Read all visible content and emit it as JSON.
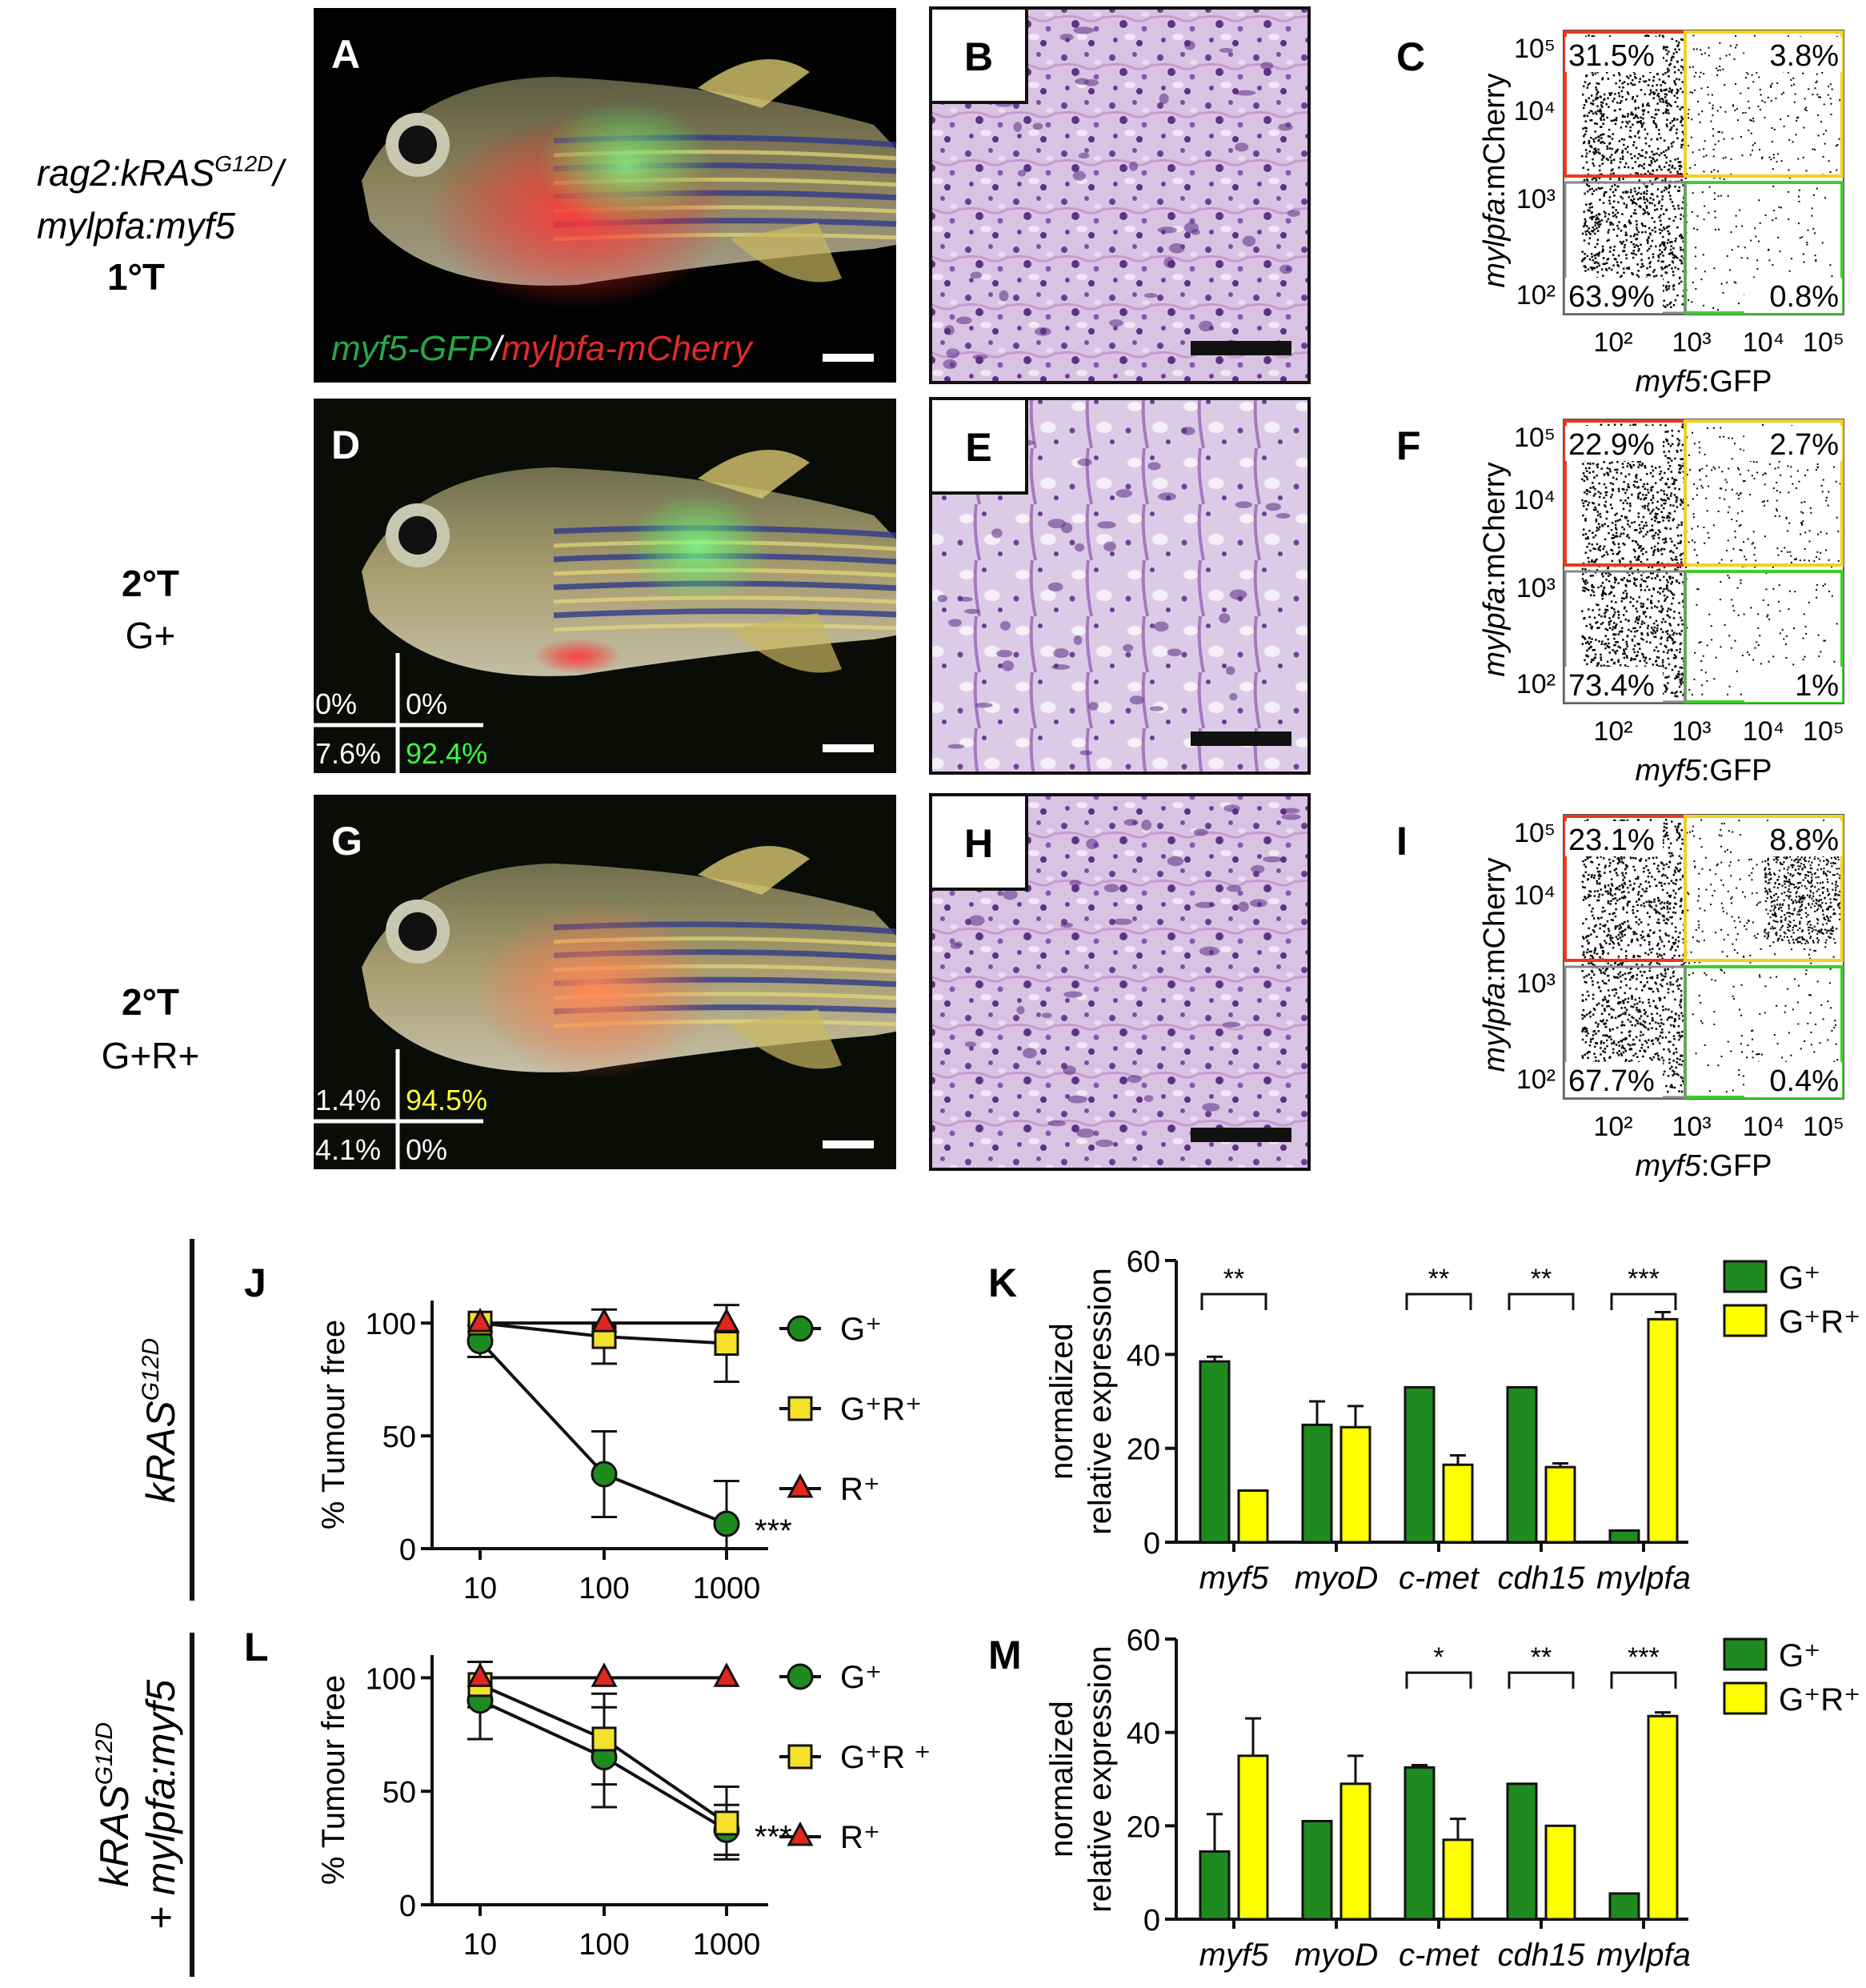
{
  "row_labels": {
    "r1": {
      "line1": "rag2:kRAS",
      "sup1": "G12D",
      "slash": "/",
      "line2": "mylpfa:myf5",
      "line3": "1°T"
    },
    "r2": {
      "line1": "2°T",
      "line2": "G+"
    },
    "r3": {
      "line1": "2°T",
      "line2": "G+R+"
    }
  },
  "side_labels": {
    "top": {
      "text": "kRAS",
      "sup": "G12D"
    },
    "bottom": {
      "line1": "kRAS",
      "sup": "G12D",
      "line2": "+ mylpfa:myf5"
    }
  },
  "fish_panels": [
    {
      "letter": "A",
      "legend_green": "myf5-GFP",
      "legend_sep": "/",
      "legend_red": "mylpfa-mCherry",
      "mini_quadrants": null
    },
    {
      "letter": "D",
      "legend_green": "",
      "legend_sep": "",
      "legend_red": "",
      "mini_quadrants": {
        "ul": "0%",
        "ur": "0%",
        "ll": "7.6%",
        "lr": "92.4%",
        "lr_color": "#3cff3c",
        "ur_color": "#ffffff"
      }
    },
    {
      "letter": "G",
      "legend_green": "",
      "legend_sep": "",
      "legend_red": "",
      "mini_quadrants": {
        "ul": "1.4%",
        "ur": "94.5%",
        "ll": "4.1%",
        "lr": "0%",
        "lr_color": "#ffffff",
        "ur_color": "#ffff33"
      }
    }
  ],
  "histology_panels": [
    {
      "letter": "B"
    },
    {
      "letter": "E"
    },
    {
      "letter": "H"
    }
  ],
  "flow_panels": [
    {
      "letter": "C",
      "ylabel_italic": "mylpfa",
      "ylabel_rest": ":mCherry",
      "xlabel_italic": "myf5",
      "xlabel_rest": ":GFP",
      "quadrants": {
        "ul": "31.5%",
        "ur": "3.8%",
        "ll": "63.9%",
        "lr": "0.8%"
      },
      "yticks": [
        "10²",
        "10³",
        "10⁴",
        "10⁵"
      ],
      "xticks": [
        "10²",
        "10³",
        "10⁴",
        "10⁵"
      ]
    },
    {
      "letter": "F",
      "ylabel_italic": "mylpfa",
      "ylabel_rest": ":mCherry",
      "xlabel_italic": "myf5",
      "xlabel_rest": ":GFP",
      "quadrants": {
        "ul": "22.9%",
        "ur": "2.7%",
        "ll": "73.4%",
        "lr": "1%"
      },
      "yticks": [
        "10²",
        "10³",
        "10⁴",
        "10⁵"
      ],
      "xticks": [
        "10²",
        "10³",
        "10⁴",
        "10⁵"
      ]
    },
    {
      "letter": "I",
      "ylabel_italic": "mylpfa",
      "ylabel_rest": ":mCherry",
      "xlabel_italic": "myf5",
      "xlabel_rest": ":GFP",
      "quadrants": {
        "ul": "23.1%",
        "ur": "8.8%",
        "ll": "67.7%",
        "lr": "0.4%"
      },
      "yticks": [
        "10²",
        "10³",
        "10⁴",
        "10⁵"
      ],
      "xticks": [
        "10²",
        "10³",
        "10⁴",
        "10⁵"
      ]
    }
  ],
  "colors": {
    "green": "#1f8a1f",
    "yellow": "#ffff00",
    "red": "#e0271e",
    "gate_red": "#e8391c",
    "gate_yellow": "#f2d21b",
    "gate_green": "#3ccf2a"
  },
  "chart_data": [
    {
      "panel": "J",
      "type": "line",
      "ylabel": "% Tumour free",
      "x": [
        10,
        100,
        1000
      ],
      "xticks": [
        "10",
        "100",
        "1000"
      ],
      "yticks": [
        "0",
        "50",
        "100"
      ],
      "ylim": [
        0,
        110
      ],
      "xscale": "log",
      "annotation": "***",
      "series": [
        {
          "name": "G⁺",
          "marker": "circle",
          "color": "#1f8a1f",
          "values": [
            92,
            33,
            11
          ],
          "errors": [
            7,
            19,
            19
          ]
        },
        {
          "name": "G⁺R⁺",
          "marker": "square",
          "color": "#f5e12a",
          "values": [
            100,
            94,
            91
          ],
          "errors": [
            0,
            12,
            17
          ]
        },
        {
          "name": "R⁺",
          "marker": "triangle",
          "color": "#e0271e",
          "values": [
            100,
            100,
            100
          ],
          "errors": [
            0,
            0,
            0
          ]
        }
      ]
    },
    {
      "panel": "K",
      "type": "bar",
      "ylabel_line1": "normalized",
      "ylabel_line2": "relative expression",
      "categories": [
        "myf5",
        "myoD",
        "c-met",
        "cdh15",
        "mylpfa"
      ],
      "yticks": [
        "0",
        "20",
        "40",
        "60"
      ],
      "ylim": [
        0,
        60
      ],
      "series": [
        {
          "name": "G⁺",
          "color": "#1f8a1f",
          "values": [
            38.5,
            25,
            33,
            33,
            2.5
          ],
          "errors": [
            1,
            5,
            0,
            0,
            0
          ]
        },
        {
          "name": "G⁺R⁺",
          "color": "#ffff00",
          "values": [
            11,
            24.5,
            16.5,
            16,
            47.5
          ],
          "errors": [
            0,
            4.5,
            2,
            0.8,
            1.5
          ]
        }
      ],
      "significance": [
        "**",
        "",
        "**",
        "**",
        "***"
      ]
    },
    {
      "panel": "L",
      "type": "line",
      "ylabel": "% Tumour free",
      "x": [
        10,
        100,
        1000
      ],
      "xticks": [
        "10",
        "100",
        "1000"
      ],
      "yticks": [
        "0",
        "50",
        "100"
      ],
      "ylim": [
        0,
        110
      ],
      "xscale": "log",
      "annotation": "***",
      "series": [
        {
          "name": "G⁺",
          "marker": "circle",
          "color": "#1f8a1f",
          "values": [
            90,
            65,
            33
          ],
          "errors": [
            17,
            22,
            11
          ]
        },
        {
          "name": "G⁺R ⁺",
          "marker": "square",
          "color": "#f5e12a",
          "values": [
            97,
            73,
            36
          ],
          "errors": [
            10,
            20,
            16
          ]
        },
        {
          "name": "R⁺",
          "marker": "triangle",
          "color": "#e0271e",
          "values": [
            100,
            100,
            100
          ],
          "errors": [
            0,
            0,
            0
          ]
        }
      ]
    },
    {
      "panel": "M",
      "type": "bar",
      "ylabel_line1": "normalized",
      "ylabel_line2": "relative expression",
      "categories": [
        "myf5",
        "myoD",
        "c-met",
        "cdh15",
        "mylpfa"
      ],
      "yticks": [
        "0",
        "20",
        "40",
        "60"
      ],
      "ylim": [
        0,
        60
      ],
      "series": [
        {
          "name": "G⁺",
          "color": "#1f8a1f",
          "values": [
            14.5,
            21,
            32.5,
            29,
            5.5
          ],
          "errors": [
            8,
            0,
            0.5,
            0,
            0
          ]
        },
        {
          "name": "G⁺R⁺",
          "color": "#ffff00",
          "values": [
            35,
            29,
            17,
            20,
            43.5
          ],
          "errors": [
            8,
            6,
            4.5,
            0,
            0.8
          ]
        }
      ],
      "significance": [
        "",
        "",
        "*",
        "**",
        "***"
      ]
    }
  ]
}
